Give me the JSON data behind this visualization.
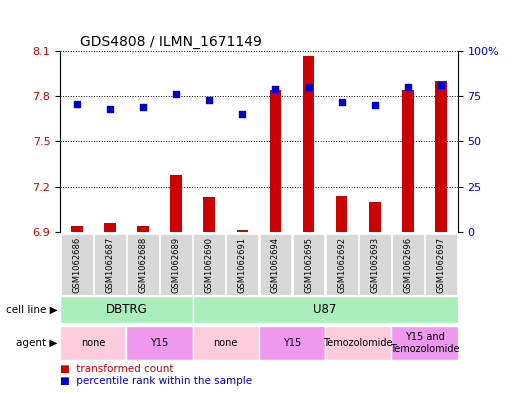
{
  "title": "GDS4808 / ILMN_1671149",
  "samples": [
    "GSM1062686",
    "GSM1062687",
    "GSM1062688",
    "GSM1062689",
    "GSM1062690",
    "GSM1062691",
    "GSM1062694",
    "GSM1062695",
    "GSM1062692",
    "GSM1062693",
    "GSM1062696",
    "GSM1062697"
  ],
  "transformed_count": [
    6.94,
    6.96,
    6.94,
    7.28,
    7.13,
    6.91,
    7.84,
    8.07,
    7.14,
    7.1,
    7.84,
    7.9
  ],
  "percentile_rank": [
    71,
    68,
    69,
    76,
    73,
    65,
    79,
    80,
    72,
    70,
    80,
    81
  ],
  "ylim_left": [
    6.9,
    8.1
  ],
  "ylim_right": [
    0,
    100
  ],
  "yticks_left": [
    6.9,
    7.2,
    7.5,
    7.8,
    8.1
  ],
  "yticks_right": [
    0,
    25,
    50,
    75,
    100
  ],
  "bar_color": "#cc0000",
  "dot_color": "#0000cc",
  "cell_line_groups": [
    {
      "label": "DBTRG",
      "start": 0,
      "end": 4,
      "color": "#aaeebb"
    },
    {
      "label": "U87",
      "start": 4,
      "end": 12,
      "color": "#aaeebb"
    }
  ],
  "agent_groups": [
    {
      "label": "none",
      "start": 0,
      "end": 2,
      "color": "#ffccdd"
    },
    {
      "label": "Y15",
      "start": 2,
      "end": 4,
      "color": "#ee99ee"
    },
    {
      "label": "none",
      "start": 4,
      "end": 6,
      "color": "#ffccdd"
    },
    {
      "label": "Y15",
      "start": 6,
      "end": 8,
      "color": "#ee99ee"
    },
    {
      "label": "Temozolomide",
      "start": 8,
      "end": 10,
      "color": "#ffccdd"
    },
    {
      "label": "Y15 and\nTemozolomide",
      "start": 10,
      "end": 12,
      "color": "#ee99ee"
    }
  ],
  "legend_items": [
    {
      "label": "transformed count",
      "color": "#cc0000"
    },
    {
      "label": "percentile rank within the sample",
      "color": "#0000cc"
    }
  ],
  "tick_bg_color": "#d8d8d8"
}
